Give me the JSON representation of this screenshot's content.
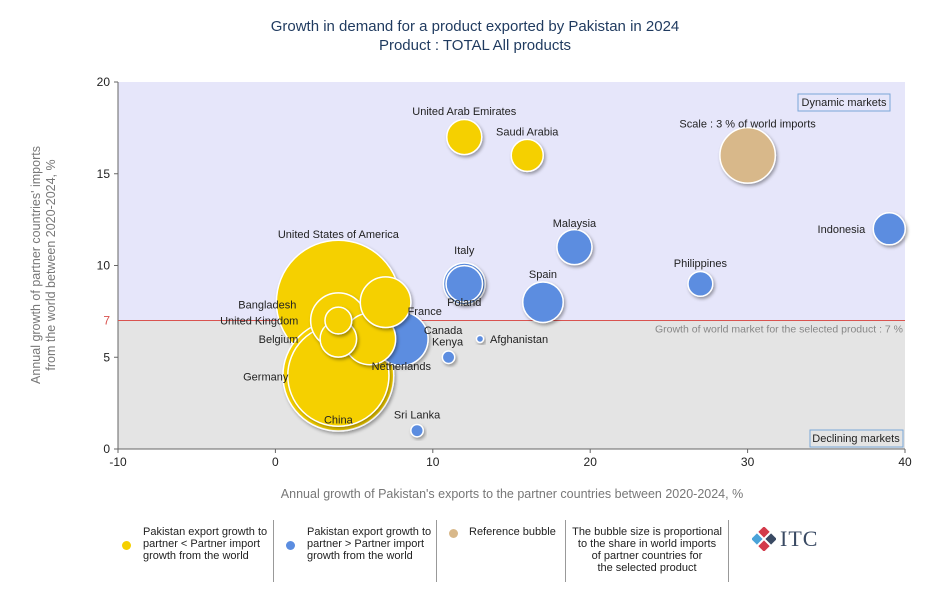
{
  "title_line1": "Growth in demand for a product exported by Pakistan in 2024",
  "title_line2": "Product : TOTAL All products",
  "chart_data": {
    "type": "scatter",
    "title": "Growth in demand for a product exported by Pakistan in 2024",
    "subtitle": "Product : TOTAL All products",
    "xlabel": "Annual growth of Pakistan's exports to the partner countries between 2020-2024, %",
    "ylabel_line1": "Annual growth of partner countries' imports",
    "ylabel_line2": "from the world between 2020-2024, %",
    "xlim": [
      -10,
      40
    ],
    "ylim": [
      0,
      20
    ],
    "xticks": [
      "-10",
      "0",
      "10",
      "20",
      "30",
      "40"
    ],
    "yticks": [
      "0",
      "5",
      "10",
      "15",
      "20"
    ],
    "reference_line": {
      "y": 7,
      "tick_label": "7",
      "label": "Growth of world market for the selected product : 7 %",
      "color": "#d9534f"
    },
    "regions": {
      "upper": {
        "label": "Dynamic markets",
        "color": "#e6e6fa"
      },
      "lower": {
        "label": "Declining markets",
        "color": "#e4e4e4"
      }
    },
    "colors": {
      "yellow": "#f5d000",
      "blue": "#5b8de0",
      "reference": "#d8b88a"
    },
    "points": [
      {
        "name": "United Arab Emirates",
        "x": 12,
        "y": 17,
        "size": 1.2,
        "group": "yellow"
      },
      {
        "name": "Saudi Arabia",
        "x": 16,
        "y": 16,
        "size": 1.0,
        "group": "yellow"
      },
      {
        "name": "Scale : 3 % of world imports",
        "x": 30,
        "y": 16,
        "size": 3.0,
        "group": "reference"
      },
      {
        "name": "Malaysia",
        "x": 19,
        "y": 11,
        "size": 1.2,
        "group": "blue"
      },
      {
        "name": "Indonesia",
        "x": 39,
        "y": 12,
        "size": 1.0,
        "group": "blue"
      },
      {
        "name": "Italy",
        "x": 12,
        "y": 9,
        "size": 1.7,
        "group": "blue"
      },
      {
        "name": "Poland",
        "x": 12,
        "y": 9,
        "size": 1.3,
        "group": "blue"
      },
      {
        "name": "Philippines",
        "x": 27,
        "y": 9,
        "size": 0.6,
        "group": "blue"
      },
      {
        "name": "Spain",
        "x": 17,
        "y": 8,
        "size": 1.6,
        "group": "blue"
      },
      {
        "name": "United States of America",
        "x": 4,
        "y": 8,
        "size": 15,
        "group": "yellow"
      },
      {
        "name": "France",
        "x": 7,
        "y": 8,
        "size": 2.5,
        "group": "yellow"
      },
      {
        "name": "Bangladesh",
        "x": 4,
        "y": 7,
        "size": 0.7,
        "group": "yellow"
      },
      {
        "name": "United Kingdom",
        "x": 4,
        "y": 7,
        "size": 3.0,
        "group": "yellow"
      },
      {
        "name": "Belgium",
        "x": 4,
        "y": 6,
        "size": 1.3,
        "group": "yellow"
      },
      {
        "name": "Canada",
        "x": 6,
        "y": 6,
        "size": 2.6,
        "group": "yellow"
      },
      {
        "name": "Netherlands",
        "x": 8,
        "y": 6,
        "size": 2.8,
        "group": "blue"
      },
      {
        "name": "Kenya",
        "x": 11,
        "y": 5,
        "size": 0.15,
        "group": "blue"
      },
      {
        "name": "Afghanistan",
        "x": 13,
        "y": 6,
        "size": 0.05,
        "group": "blue"
      },
      {
        "name": "Germany",
        "x": 4,
        "y": 4,
        "size": 10,
        "group": "yellow"
      },
      {
        "name": "China",
        "x": 4,
        "y": 4,
        "size": 12,
        "group": "yellow"
      },
      {
        "name": "Sri Lanka",
        "x": 9,
        "y": 1,
        "size": 0.15,
        "group": "blue"
      }
    ]
  },
  "legend": [
    {
      "label_lines": [
        "Pakistan export growth to",
        "partner < Partner import",
        "growth from the world"
      ],
      "color": "#f5d000"
    },
    {
      "label_lines": [
        "Pakistan export growth to",
        "partner > Partner import",
        "growth from the world"
      ],
      "color": "#5b8de0"
    },
    {
      "label_lines": [
        "Reference bubble"
      ],
      "color": "#d8b88a"
    },
    {
      "label_lines": [
        "The bubble size is proportional",
        "to the share in world imports",
        "of partner countries for",
        "the selected product"
      ]
    }
  ],
  "logo_text": "ITC"
}
